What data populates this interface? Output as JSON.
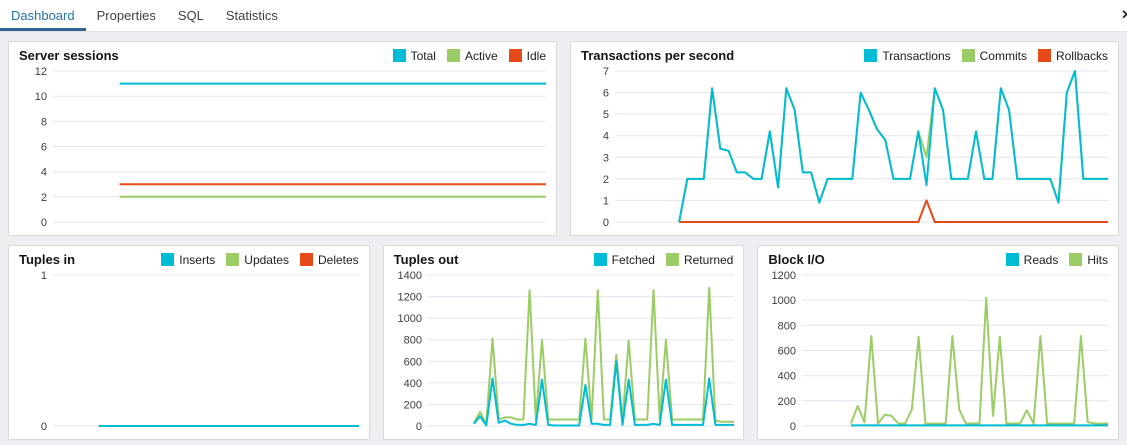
{
  "tab_bar": {
    "tabs": [
      {
        "label": "Dashboard",
        "active": true
      },
      {
        "label": "Properties",
        "active": false
      },
      {
        "label": "SQL",
        "active": false
      },
      {
        "label": "Statistics",
        "active": false
      }
    ],
    "close_icon": "✕"
  },
  "colors": {
    "cyan": "#00BCD4",
    "green": "#9CCC65",
    "orange": "#E64A19",
    "active_tab_text": "#2574a9",
    "active_tab_underline": "#326690",
    "gridline": "#e3e5ee",
    "tick_text": "#3d3d3d"
  },
  "chart_data": [
    {
      "type": "line",
      "title": "Server sessions",
      "ylim": [
        0,
        12
      ],
      "yticks": [
        12,
        10,
        8,
        6,
        4,
        2,
        0
      ],
      "x_start_frac": 0.135,
      "grid": true,
      "legend_position": "top-right",
      "series": [
        {
          "name": "Total",
          "color": "#00BCD4",
          "values": [
            11,
            11
          ]
        },
        {
          "name": "Active",
          "color": "#9CCC65",
          "values": [
            2,
            2
          ]
        },
        {
          "name": "Idle",
          "color": "#E64A19",
          "values": [
            3,
            3
          ]
        }
      ]
    },
    {
      "type": "line",
      "title": "Transactions per second",
      "ylim": [
        0,
        7
      ],
      "yticks": [
        7,
        6,
        5,
        4,
        3,
        2,
        1,
        0
      ],
      "x_start_frac": 0.13,
      "grid": true,
      "legend_position": "top-right",
      "series": [
        {
          "name": "Transactions",
          "color": "#00BCD4",
          "values": [
            0,
            2,
            2,
            2,
            6.2,
            3.4,
            3.3,
            2.3,
            2.3,
            2,
            2,
            4.2,
            1.6,
            6.2,
            5.2,
            2.3,
            2.3,
            0.9,
            2,
            2,
            2,
            2,
            6,
            5.2,
            4.3,
            3.8,
            2,
            2,
            2,
            4.2,
            1.7,
            6.2,
            5.2,
            2,
            2,
            2,
            4.2,
            2,
            2,
            6.2,
            5.2,
            2,
            2,
            2,
            2,
            2,
            0.9,
            6,
            7,
            2,
            2,
            2,
            2
          ]
        },
        {
          "name": "Commits",
          "color": "#9CCC65",
          "values": [
            0,
            2,
            2,
            2,
            6.2,
            3.4,
            3.3,
            2.3,
            2.3,
            2,
            2,
            4.2,
            1.6,
            6.2,
            5.2,
            2.3,
            2.3,
            0.9,
            2,
            2,
            2,
            2,
            6,
            5.2,
            4.3,
            3.8,
            2,
            2,
            2,
            4.2,
            3,
            6.2,
            5.2,
            2,
            2,
            2,
            4.2,
            2,
            2,
            6.2,
            5.2,
            2,
            2,
            2,
            2,
            2,
            0.9,
            6,
            7,
            2,
            2,
            2,
            2
          ]
        },
        {
          "name": "Rollbacks",
          "color": "#E64A19",
          "values": [
            0,
            0,
            0,
            0,
            0,
            0,
            0,
            0,
            0,
            0,
            0,
            0,
            0,
            0,
            0,
            0,
            0,
            0,
            0,
            0,
            0,
            0,
            0,
            0,
            0,
            0,
            0,
            0,
            0,
            0,
            1,
            0,
            0,
            0,
            0,
            0,
            0,
            0,
            0,
            0,
            0,
            0,
            0,
            0,
            0,
            0,
            0,
            0,
            0,
            0,
            0,
            0,
            0
          ]
        }
      ]
    },
    {
      "type": "line",
      "title": "Tuples in",
      "ylim": [
        0,
        1
      ],
      "yticks": [
        1,
        0
      ],
      "x_start_frac": 0.15,
      "grid": true,
      "legend_position": "top-right",
      "series": [
        {
          "name": "Inserts",
          "color": "#00BCD4",
          "values": [
            0,
            0
          ]
        },
        {
          "name": "Updates",
          "color": "#9CCC65",
          "values": [
            0,
            0
          ]
        },
        {
          "name": "Deletes",
          "color": "#E64A19",
          "values": [
            0,
            0
          ]
        }
      ]
    },
    {
      "type": "line",
      "title": "Tuples out",
      "ylim": [
        0,
        1400
      ],
      "yticks": [
        1400,
        1200,
        1000,
        800,
        600,
        400,
        200,
        0
      ],
      "x_start_frac": 0.15,
      "grid": true,
      "legend_position": "top-right",
      "series": [
        {
          "name": "Fetched",
          "color": "#00BCD4",
          "values": [
            20,
            90,
            5,
            440,
            30,
            50,
            20,
            10,
            10,
            20,
            10,
            430,
            10,
            5,
            5,
            5,
            5,
            5,
            380,
            20,
            20,
            10,
            10,
            600,
            10,
            430,
            10,
            10,
            10,
            20,
            10,
            430,
            10,
            10,
            10,
            10,
            10,
            10,
            440,
            10,
            10,
            10,
            10
          ]
        },
        {
          "name": "Returned",
          "color": "#9CCC65",
          "values": [
            30,
            130,
            20,
            810,
            60,
            80,
            80,
            60,
            60,
            1260,
            60,
            800,
            60,
            60,
            60,
            60,
            60,
            60,
            810,
            60,
            1260,
            60,
            60,
            660,
            60,
            790,
            60,
            60,
            60,
            1260,
            60,
            800,
            60,
            60,
            60,
            60,
            60,
            60,
            1280,
            50,
            40,
            40,
            40
          ]
        }
      ]
    },
    {
      "type": "line",
      "title": "Block I/O",
      "ylim": [
        0,
        1200
      ],
      "yticks": [
        1200,
        1000,
        800,
        600,
        400,
        200,
        0
      ],
      "x_start_frac": 0.16,
      "grid": true,
      "legend_position": "top-right",
      "series": [
        {
          "name": "Reads",
          "color": "#00BCD4",
          "values": [
            5,
            5
          ]
        },
        {
          "name": "Hits",
          "color": "#9CCC65",
          "values": [
            20,
            160,
            30,
            715,
            20,
            90,
            80,
            20,
            20,
            130,
            710,
            20,
            20,
            20,
            20,
            715,
            130,
            20,
            20,
            20,
            1020,
            80,
            710,
            20,
            20,
            20,
            125,
            20,
            715,
            20,
            20,
            20,
            20,
            20,
            715,
            30,
            20,
            20,
            20
          ]
        }
      ]
    }
  ]
}
